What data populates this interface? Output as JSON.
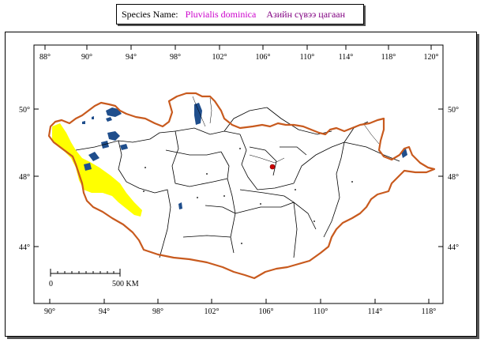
{
  "header": {
    "species_label": "Species Name:",
    "species_latin": "Pluvialis dominica",
    "species_local": "Азийн сүвээ цагаан"
  },
  "axes": {
    "top_lon": [
      "88°",
      "90°",
      "94°",
      "98°",
      "102°",
      "106°",
      "110°",
      "114°",
      "118°",
      "120°"
    ],
    "bottom_lon": [
      "90°",
      "94°",
      "98°",
      "102°",
      "106°",
      "110°",
      "114°",
      "118°"
    ],
    "left_lat": [
      "50°",
      "48°",
      "44°"
    ],
    "right_lat": [
      "50°",
      "48°",
      "44°"
    ]
  },
  "scale_bar": {
    "start_label": "0",
    "end_label": "500 KM"
  },
  "colors": {
    "border": "#c85a1e",
    "range": "#ffff00",
    "water": "#1f4e8c",
    "admin": "#000000",
    "capital": "#cc0000"
  }
}
